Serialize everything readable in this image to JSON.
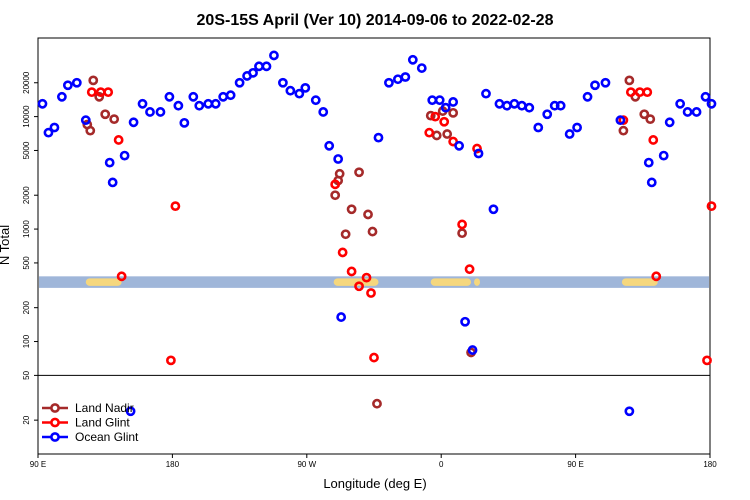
{
  "chart_data": {
    "type": "scatter",
    "title": "20S-15S April (Ver 10)   2014-09-06 to 2022-02-28",
    "xlabel": "Longitude (deg E)",
    "ylabel": "N Total",
    "y_scale": "log",
    "ylim": [
      10,
      50000
    ],
    "x_axis": {
      "ticks": [
        {
          "value": 90,
          "label": "90 E"
        },
        {
          "value": 180,
          "label": "180"
        },
        {
          "value": 270,
          "label": "90 W"
        },
        {
          "value": 360,
          "label": "0"
        },
        {
          "value": 450,
          "label": "90 E"
        },
        {
          "value": 540,
          "label": "180"
        }
      ],
      "xlim": [
        90,
        540
      ]
    },
    "y_axis": {
      "ticks": [
        {
          "value": 20,
          "label": "20"
        },
        {
          "value": 50,
          "label": "50"
        },
        {
          "value": 100,
          "label": "100"
        },
        {
          "value": 200,
          "label": "200"
        },
        {
          "value": 500,
          "label": "500"
        },
        {
          "value": 1000,
          "label": "1000"
        },
        {
          "value": 2000,
          "label": "2000"
        },
        {
          "value": 5000,
          "label": "5000"
        },
        {
          "value": 10000,
          "label": "10000"
        },
        {
          "value": 20000,
          "label": "20000"
        }
      ]
    },
    "reference_line": 50,
    "band": {
      "y_low": 300,
      "y_high": 380,
      "ocean_color": "#9fb6d9",
      "land_color": "#f5d77e"
    },
    "grid": false,
    "legend_position": "bottom-left",
    "series": [
      {
        "name": "Land Nadir",
        "color": "#a52a2a",
        "points": [
          [
            123,
            8500
          ],
          [
            125,
            7500
          ],
          [
            127,
            21000
          ],
          [
            131,
            15000
          ],
          [
            135,
            10500
          ],
          [
            141,
            9500
          ],
          [
            289,
            2000
          ],
          [
            291,
            2700
          ],
          [
            292,
            3100
          ],
          [
            296,
            900
          ],
          [
            300,
            1500
          ],
          [
            305,
            3200
          ],
          [
            311,
            1350
          ],
          [
            314,
            950
          ],
          [
            317,
            28
          ],
          [
            353,
            10200
          ],
          [
            357,
            6800
          ],
          [
            361,
            11200
          ],
          [
            364,
            7000
          ],
          [
            368,
            10800
          ],
          [
            374,
            920
          ],
          [
            380,
            80
          ],
          [
            482,
            7500
          ],
          [
            486,
            21000
          ],
          [
            490,
            15000
          ],
          [
            496,
            10500
          ],
          [
            500,
            9500
          ]
        ]
      },
      {
        "name": "Land Glint",
        "color": "#ff0000",
        "points": [
          [
            126,
            16500
          ],
          [
            132,
            16500
          ],
          [
            137,
            16500
          ],
          [
            144,
            6200
          ],
          [
            146,
            380
          ],
          [
            179,
            68
          ],
          [
            182,
            1600
          ],
          [
            289,
            2500
          ],
          [
            294,
            620
          ],
          [
            300,
            420
          ],
          [
            305,
            310
          ],
          [
            310,
            370
          ],
          [
            313,
            270
          ],
          [
            315,
            72
          ],
          [
            352,
            7200
          ],
          [
            356,
            10000
          ],
          [
            362,
            9000
          ],
          [
            368,
            6000
          ],
          [
            374,
            1100
          ],
          [
            379,
            440
          ],
          [
            384,
            5200
          ],
          [
            482,
            9300
          ],
          [
            487,
            16500
          ],
          [
            493,
            16500
          ],
          [
            498,
            16500
          ],
          [
            502,
            6200
          ],
          [
            504,
            380
          ],
          [
            538,
            68
          ],
          [
            541,
            1600
          ]
        ]
      },
      {
        "name": "Ocean Glint",
        "color": "#0000ff",
        "points": [
          [
            93,
            13000
          ],
          [
            97,
            7200
          ],
          [
            101,
            8000
          ],
          [
            106,
            15000
          ],
          [
            110,
            19000
          ],
          [
            116,
            20000
          ],
          [
            122,
            9300
          ],
          [
            138,
            3900
          ],
          [
            140,
            2600
          ],
          [
            148,
            4500
          ],
          [
            154,
            8900
          ],
          [
            160,
            13000
          ],
          [
            165,
            11000
          ],
          [
            172,
            11000
          ],
          [
            178,
            15000
          ],
          [
            184,
            12500
          ],
          [
            188,
            8800
          ],
          [
            194,
            15000
          ],
          [
            198,
            12500
          ],
          [
            204,
            13000
          ],
          [
            209,
            13000
          ],
          [
            214,
            15000
          ],
          [
            219,
            15500
          ],
          [
            225,
            20000
          ],
          [
            230,
            23000
          ],
          [
            234,
            24500
          ],
          [
            238,
            28000
          ],
          [
            243,
            28000
          ],
          [
            248,
            35000
          ],
          [
            254,
            20000
          ],
          [
            259,
            17000
          ],
          [
            265,
            16000
          ],
          [
            269,
            18000
          ],
          [
            276,
            14000
          ],
          [
            281,
            11000
          ],
          [
            285,
            5500
          ],
          [
            291,
            4200
          ],
          [
            293,
            165
          ],
          [
            318,
            6500
          ],
          [
            325,
            20000
          ],
          [
            331,
            21500
          ],
          [
            336,
            22500
          ],
          [
            341,
            32000
          ],
          [
            347,
            27000
          ],
          [
            354,
            14000
          ],
          [
            359,
            14000
          ],
          [
            363,
            12000
          ],
          [
            368,
            13500
          ],
          [
            372,
            5500
          ],
          [
            376,
            150
          ],
          [
            381,
            84
          ],
          [
            385,
            4700
          ],
          [
            390,
            16000
          ],
          [
            395,
            1500
          ],
          [
            399,
            13000
          ],
          [
            404,
            12500
          ],
          [
            409,
            13000
          ],
          [
            414,
            12500
          ],
          [
            419,
            12000
          ],
          [
            425,
            8000
          ],
          [
            431,
            10500
          ],
          [
            436,
            12500
          ],
          [
            440,
            12500
          ],
          [
            446,
            7000
          ],
          [
            451,
            8000
          ],
          [
            458,
            15000
          ],
          [
            463,
            19000
          ],
          [
            470,
            20000
          ],
          [
            480,
            9300
          ],
          [
            486,
            24
          ],
          [
            499,
            3900
          ],
          [
            501,
            2600
          ],
          [
            509,
            4500
          ],
          [
            513,
            8900
          ],
          [
            520,
            13000
          ],
          [
            525,
            11000
          ],
          [
            531,
            11000
          ],
          [
            537,
            15000
          ],
          [
            541,
            13000
          ],
          [
            152,
            24
          ]
        ]
      }
    ]
  }
}
